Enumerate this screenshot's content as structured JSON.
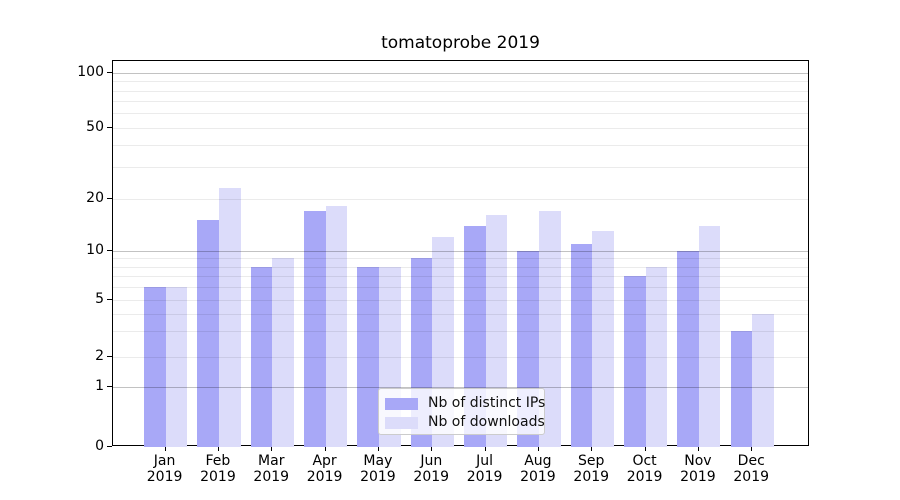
{
  "title": "tomatoprobe 2019",
  "chart_data": {
    "type": "bar",
    "title": "tomatoprobe 2019",
    "categories": [
      "Jan 2019",
      "Feb 2019",
      "Mar 2019",
      "Apr 2019",
      "May 2019",
      "Jun 2019",
      "Jul 2019",
      "Aug 2019",
      "Sep 2019",
      "Oct 2019",
      "Nov 2019",
      "Dec 2019"
    ],
    "series": [
      {
        "name": "Nb of distinct IPs",
        "color": "#a8a8f7",
        "values": [
          6,
          15,
          8,
          17,
          8,
          9,
          14,
          10,
          11,
          7,
          10,
          3
        ]
      },
      {
        "name": "Nb of downloads",
        "color": "#dcdcfa",
        "values": [
          6,
          23,
          9,
          18,
          8,
          12,
          16,
          17,
          13,
          8,
          14,
          4
        ]
      }
    ],
    "xlabel": "",
    "ylabel": "",
    "y_axis": {
      "scale": "symlog",
      "tick_values": [
        0,
        1,
        2,
        5,
        10,
        20,
        50,
        100
      ],
      "tick_labels": [
        "0",
        "1",
        "2",
        "5",
        "10",
        "20",
        "50",
        "100"
      ],
      "minor_gridlines": [
        2,
        3,
        4,
        5,
        6,
        7,
        8,
        9,
        20,
        30,
        40,
        50,
        60,
        70,
        80,
        90
      ],
      "major_gridlines": [
        1,
        10,
        100
      ],
      "ylim": [
        0,
        130
      ]
    },
    "grid": true,
    "legend_position": "lower center"
  },
  "legend": {
    "entries": [
      "Nb of distinct IPs",
      "Nb of downloads"
    ]
  }
}
